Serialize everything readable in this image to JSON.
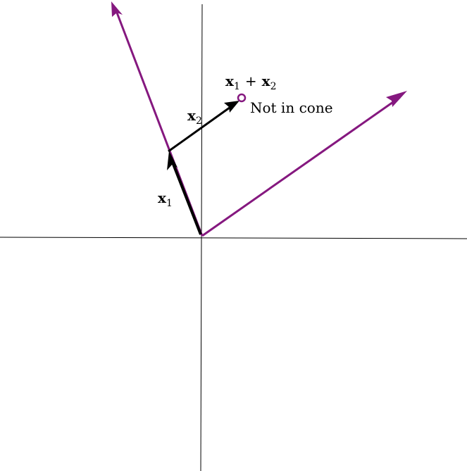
{
  "labels": {
    "x1": {
      "base": "x",
      "sub": "1"
    },
    "x2": {
      "base": "x",
      "sub": "2"
    },
    "sum": {
      "a": "x",
      "a_sub": "1",
      "op": "+",
      "b": "x",
      "b_sub": "2"
    },
    "note": "Not in cone"
  },
  "colors": {
    "cone": "#85187f",
    "vector": "#000000",
    "axis": "#000000"
  }
}
